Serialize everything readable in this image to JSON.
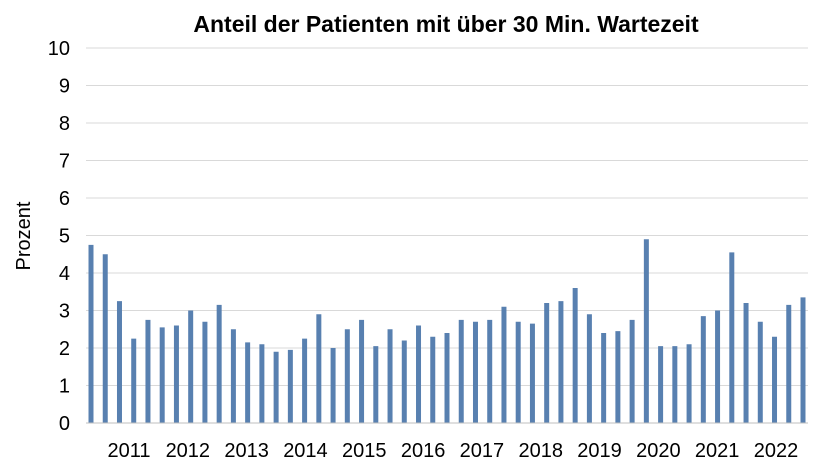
{
  "chart_data": {
    "type": "bar",
    "title": "Anteil der Patienten mit über 30 Min. Wartezeit",
    "xlabel": "",
    "ylabel": "Prozent",
    "ylim": [
      0,
      10
    ],
    "yticks": [
      "0",
      "1",
      "2",
      "3",
      "4",
      "5",
      "6",
      "7",
      "8",
      "9",
      "10"
    ],
    "year_labels": [
      "2011",
      "2012",
      "2013",
      "2014",
      "2015",
      "2016",
      "2017",
      "2018",
      "2019",
      "2020",
      "2021",
      "2022"
    ],
    "values": [
      4.75,
      4.5,
      3.25,
      2.25,
      2.75,
      2.55,
      2.6,
      3.0,
      2.7,
      3.15,
      2.5,
      2.15,
      2.1,
      1.9,
      1.95,
      2.25,
      2.9,
      2.0,
      2.5,
      2.75,
      2.05,
      2.5,
      2.2,
      2.6,
      2.3,
      2.4,
      2.75,
      2.7,
      2.75,
      3.1,
      2.7,
      2.65,
      3.2,
      3.25,
      3.6,
      2.9,
      2.4,
      2.45,
      2.75,
      4.9,
      2.05,
      2.05,
      2.1,
      2.85,
      3.0,
      4.55,
      3.2,
      2.7,
      2.3,
      3.15,
      3.35
    ],
    "bar_color": "#5880b0",
    "grid": true,
    "grid_color": "#d9d9d9",
    "legend": "none"
  }
}
